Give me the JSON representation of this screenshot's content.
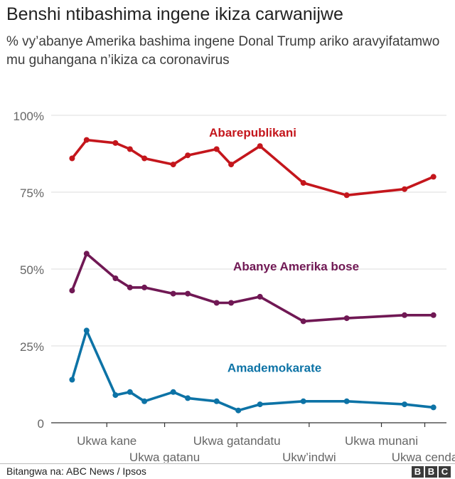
{
  "header": {
    "title": "Benshi ntibashima ingene ikiza carwanijwe",
    "subtitle": "% vy’abanye Amerika bashima ingene Donal Trump ariko aravyifatamwo mu guhangana n’ikiza ca coronavirus"
  },
  "footer": {
    "source": "Bitangwa na: ABC News / Ipsos",
    "logo_letters": [
      "B",
      "B",
      "C"
    ]
  },
  "chart_data": {
    "type": "line",
    "title": "Benshi ntibashima ingene ikiza carwanijwe",
    "subtitle": "% vy’abanye Amerika bashima ingene Donal Trump ariko aravyifatamwo mu guhangana n’ikiza ca coronavirus",
    "x": [
      1,
      2,
      4,
      5,
      6,
      8,
      9,
      11,
      12,
      14,
      15,
      19,
      21,
      24
    ],
    "x_ticks": [
      {
        "x": 3.4,
        "label": "Ukwa kane",
        "row": 1
      },
      {
        "x": 7.4,
        "label": "Ukwa gatanu",
        "row": 2
      },
      {
        "x": 12.4,
        "label": "Ukwa gatandatu",
        "row": 1
      },
      {
        "x": 17.4,
        "label": "Ukw’indwi",
        "row": 2
      },
      {
        "x": 22.4,
        "label": "Ukwa munani",
        "row": 1
      },
      {
        "x": 25.4,
        "label": "Ukwa cenda",
        "row": 2
      }
    ],
    "xlim": [
      -0.3,
      26.9
    ],
    "ylim": [
      0,
      100
    ],
    "yticks": [
      {
        "value": 0,
        "label": "0"
      },
      {
        "value": 25,
        "label": "25%"
      },
      {
        "value": 50,
        "label": "50%"
      },
      {
        "value": 75,
        "label": "75%"
      },
      {
        "value": 100,
        "label": "100%"
      }
    ],
    "grid": true,
    "series": [
      {
        "name": "Abarepublikani",
        "color": "#c4161c",
        "label_value": {
          "x": 13.5,
          "y": 93
        },
        "points": [
          [
            1,
            86
          ],
          [
            2,
            92
          ],
          [
            4,
            91
          ],
          [
            5,
            89
          ],
          [
            6,
            86
          ],
          [
            8,
            84
          ],
          [
            9,
            87
          ],
          [
            11,
            89
          ],
          [
            12,
            84
          ],
          [
            14,
            90
          ],
          [
            17,
            78
          ],
          [
            20,
            74
          ],
          [
            24,
            76
          ],
          [
            26,
            80
          ]
        ]
      },
      {
        "name": "Abanye Amerika bose",
        "color": "#701854",
        "label_value": {
          "x": 16.5,
          "y": 49.5
        },
        "points": [
          [
            1,
            43
          ],
          [
            2,
            55
          ],
          [
            4,
            47
          ],
          [
            5,
            44
          ],
          [
            6,
            44
          ],
          [
            8,
            42
          ],
          [
            9,
            42
          ],
          [
            11,
            39
          ],
          [
            12,
            39
          ],
          [
            14,
            41
          ],
          [
            17,
            33
          ],
          [
            20,
            34
          ],
          [
            24,
            35
          ],
          [
            26,
            35
          ]
        ]
      },
      {
        "name": "Amademokarate",
        "color": "#0d73a6",
        "label_value": {
          "x": 15,
          "y": 16.5
        },
        "points": [
          [
            1,
            14
          ],
          [
            2,
            30
          ],
          [
            4,
            9
          ],
          [
            5,
            10
          ],
          [
            6,
            7
          ],
          [
            8,
            10
          ],
          [
            9,
            8
          ],
          [
            11,
            7
          ],
          [
            12.5,
            4
          ],
          [
            14,
            6
          ],
          [
            17,
            7
          ],
          [
            20,
            7
          ],
          [
            24,
            6
          ],
          [
            26,
            5
          ]
        ]
      }
    ]
  }
}
